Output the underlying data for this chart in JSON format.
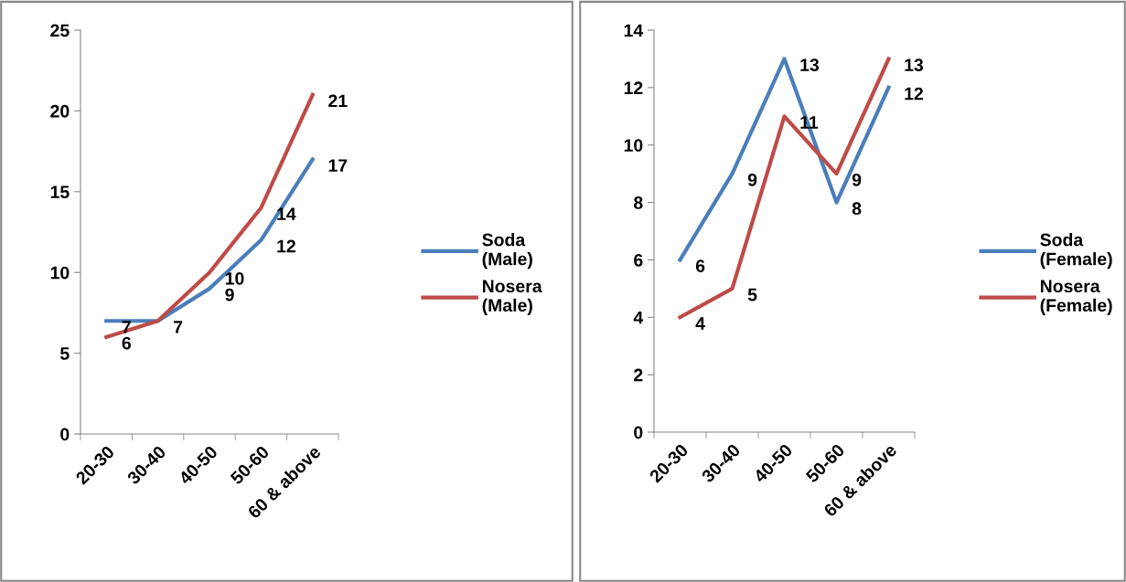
{
  "chart_data": [
    {
      "type": "line",
      "categories": [
        "20-30",
        "30-40",
        "40-50",
        "50-60",
        "60 & above"
      ],
      "ylim": [
        0,
        25
      ],
      "yticks": [
        0,
        5,
        10,
        15,
        20,
        25
      ],
      "grid": false,
      "legend": "right",
      "line_style": "solid",
      "marker": "none",
      "series": [
        {
          "name": "Soda (Male)",
          "color": "#4a7ebb",
          "values": [
            7,
            7,
            9,
            12,
            17
          ],
          "value_labels": [
            "7",
            "7",
            "9",
            "12",
            "17"
          ]
        },
        {
          "name": "Nosera (Male)",
          "color": "#be4b48",
          "values": [
            6,
            7,
            10,
            14,
            21
          ],
          "value_labels": [
            "6",
            null,
            "10",
            "14",
            "21"
          ]
        }
      ]
    },
    {
      "type": "line",
      "categories": [
        "20-30",
        "30-40",
        "40-50",
        "50-60",
        "60 & above"
      ],
      "ylim": [
        0,
        14
      ],
      "yticks": [
        0,
        2,
        4,
        6,
        8,
        10,
        12,
        14
      ],
      "grid": false,
      "legend": "right",
      "data_labels": true,
      "line_style": "solid",
      "marker": "none",
      "series": [
        {
          "name": "Soda (Female)",
          "color": "#4a7ebb",
          "values": [
            6,
            9,
            13,
            8,
            12
          ]
        },
        {
          "name": "Nosera (Female)",
          "color": "#be4b48",
          "values": [
            4,
            5,
            11,
            9,
            13
          ]
        }
      ]
    }
  ]
}
